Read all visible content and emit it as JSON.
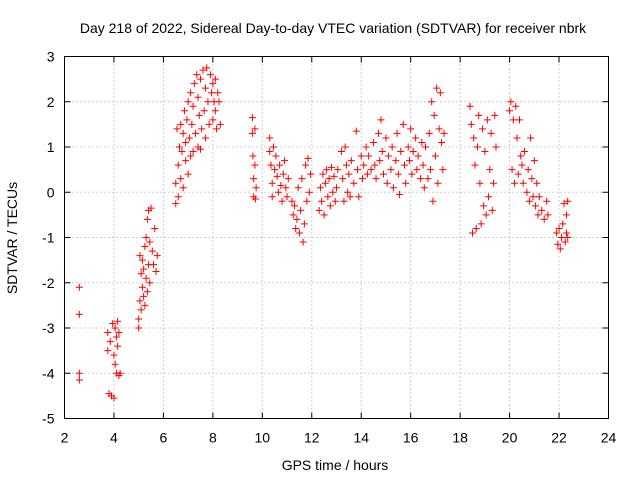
{
  "chart_data": {
    "type": "scatter",
    "title": "Day 218 of 2022, Sidereal Day-to-day VTEC variation (SDTVAR) for receiver nbrk",
    "xlabel": "GPS time / hours",
    "ylabel": "SDTVAR / TECUs",
    "xlim": [
      2,
      24
    ],
    "ylim": [
      -5,
      3
    ],
    "xticks": [
      2,
      4,
      6,
      8,
      10,
      12,
      14,
      16,
      18,
      20,
      22,
      24
    ],
    "yticks": [
      -5,
      -4,
      -3,
      -2,
      -1,
      0,
      1,
      2,
      3
    ],
    "grid": true,
    "marker": "+",
    "color": "#ff0000",
    "series": [
      {
        "name": "SDTVAR",
        "points": [
          [
            2.6,
            -2.1
          ],
          [
            2.6,
            -2.7
          ],
          [
            2.6,
            -4.0
          ],
          [
            2.6,
            -4.15
          ],
          [
            3.75,
            -3.1
          ],
          [
            3.75,
            -3.5
          ],
          [
            3.8,
            -4.45
          ],
          [
            3.85,
            -3.3
          ],
          [
            3.9,
            -4.5
          ],
          [
            3.95,
            -2.9
          ],
          [
            4.0,
            -3.6
          ],
          [
            4.0,
            -4.55
          ],
          [
            4.05,
            -3.0
          ],
          [
            4.05,
            -3.8
          ],
          [
            4.1,
            -3.2
          ],
          [
            4.1,
            -4.0
          ],
          [
            4.15,
            -2.85
          ],
          [
            4.15,
            -3.4
          ],
          [
            4.2,
            -4.05
          ],
          [
            4.2,
            -3.1
          ],
          [
            4.25,
            -4.0
          ],
          [
            5.0,
            -3.0
          ],
          [
            5.0,
            -2.8
          ],
          [
            5.05,
            -2.4
          ],
          [
            5.05,
            -1.4
          ],
          [
            5.1,
            -2.6
          ],
          [
            5.1,
            -1.8
          ],
          [
            5.15,
            -2.1
          ],
          [
            5.15,
            -1.5
          ],
          [
            5.2,
            -2.3
          ],
          [
            5.2,
            -1.7
          ],
          [
            5.25,
            -2.5
          ],
          [
            5.25,
            -1.2
          ],
          [
            5.3,
            -1.9
          ],
          [
            5.3,
            -1.0
          ],
          [
            5.35,
            -2.2
          ],
          [
            5.35,
            -0.6
          ],
          [
            5.4,
            -1.6
          ],
          [
            5.4,
            -0.4
          ],
          [
            5.45,
            -2.0
          ],
          [
            5.45,
            -1.1
          ],
          [
            5.5,
            -0.35
          ],
          [
            5.55,
            -1.3
          ],
          [
            5.6,
            -1.6
          ],
          [
            5.65,
            -0.8
          ],
          [
            5.7,
            -1.75
          ],
          [
            5.75,
            -1.4
          ],
          [
            6.5,
            -0.25
          ],
          [
            6.5,
            0.2
          ],
          [
            6.55,
            1.4
          ],
          [
            6.6,
            -0.1
          ],
          [
            6.6,
            0.6
          ],
          [
            6.65,
            1.0
          ],
          [
            6.7,
            0.3
          ],
          [
            6.7,
            1.5
          ],
          [
            6.75,
            0.9
          ],
          [
            6.8,
            0.1
          ],
          [
            6.8,
            1.3
          ],
          [
            6.85,
            1.8
          ],
          [
            6.9,
            0.7
          ],
          [
            6.9,
            1.1
          ],
          [
            6.95,
            1.6
          ],
          [
            7.0,
            0.4
          ],
          [
            7.0,
            2.0
          ],
          [
            7.05,
            1.2
          ],
          [
            7.1,
            0.8
          ],
          [
            7.1,
            2.2
          ],
          [
            7.15,
            1.5
          ],
          [
            7.2,
            1.9
          ],
          [
            7.2,
            0.9
          ],
          [
            7.25,
            2.4
          ],
          [
            7.3,
            1.3
          ],
          [
            7.35,
            2.6
          ],
          [
            7.4,
            1.0
          ],
          [
            7.4,
            2.1
          ],
          [
            7.45,
            1.7
          ],
          [
            7.5,
            2.5
          ],
          [
            7.5,
            0.95
          ],
          [
            7.55,
            1.4
          ],
          [
            7.6,
            2.7
          ],
          [
            7.65,
            1.8
          ],
          [
            7.7,
            2.3
          ],
          [
            7.7,
            1.2
          ],
          [
            7.75,
            2.75
          ],
          [
            7.8,
            2.0
          ],
          [
            7.85,
            1.5
          ],
          [
            7.9,
            2.6
          ],
          [
            7.95,
            2.2
          ],
          [
            8.0,
            1.6
          ],
          [
            8.0,
            2.4
          ],
          [
            8.05,
            2.0
          ],
          [
            8.1,
            1.8
          ],
          [
            8.1,
            2.5
          ],
          [
            8.15,
            1.4
          ],
          [
            8.2,
            2.2
          ],
          [
            8.25,
            2.0
          ],
          [
            8.3,
            1.5
          ],
          [
            9.6,
            1.65
          ],
          [
            9.6,
            1.3
          ],
          [
            9.62,
            0.8
          ],
          [
            9.65,
            0.3
          ],
          [
            9.65,
            -0.1
          ],
          [
            9.7,
            0.6
          ],
          [
            9.7,
            1.4
          ],
          [
            9.72,
            -0.15
          ],
          [
            9.75,
            0.1
          ],
          [
            10.3,
            1.2
          ],
          [
            10.3,
            0.9
          ],
          [
            10.35,
            0.6
          ],
          [
            10.4,
            0.2
          ],
          [
            10.4,
            -0.1
          ],
          [
            10.45,
            1.0
          ],
          [
            10.5,
            0.5
          ],
          [
            10.55,
            0.8
          ],
          [
            10.6,
            0.35
          ],
          [
            10.65,
            0.0
          ],
          [
            10.7,
            0.6
          ],
          [
            10.75,
            0.15
          ],
          [
            10.8,
            -0.2
          ],
          [
            10.85,
            0.4
          ],
          [
            10.9,
            0.7
          ],
          [
            10.95,
            0.1
          ],
          [
            11.0,
            -0.1
          ],
          [
            11.05,
            0.3
          ],
          [
            11.2,
            -0.2
          ],
          [
            11.25,
            -0.5
          ],
          [
            11.3,
            -0.3
          ],
          [
            11.35,
            -0.8
          ],
          [
            11.4,
            -0.6
          ],
          [
            11.45,
            0.1
          ],
          [
            11.5,
            -0.9
          ],
          [
            11.55,
            -0.4
          ],
          [
            11.6,
            0.3
          ],
          [
            11.65,
            -1.1
          ],
          [
            11.7,
            -0.7
          ],
          [
            11.75,
            0.6
          ],
          [
            11.8,
            -0.2
          ],
          [
            11.85,
            0.75
          ],
          [
            11.9,
            0.0
          ],
          [
            11.95,
            0.4
          ],
          [
            12.3,
            -0.4
          ],
          [
            12.35,
            0.1
          ],
          [
            12.4,
            -0.2
          ],
          [
            12.45,
            0.4
          ],
          [
            12.5,
            -0.5
          ],
          [
            12.55,
            0.2
          ],
          [
            12.6,
            0.5
          ],
          [
            12.65,
            -0.1
          ],
          [
            12.7,
            0.3
          ],
          [
            12.75,
            -0.3
          ],
          [
            12.8,
            0.55
          ],
          [
            12.85,
            0.0
          ],
          [
            12.9,
            0.35
          ],
          [
            12.95,
            -0.2
          ],
          [
            13.0,
            0.1
          ],
          [
            13.05,
            0.5
          ],
          [
            13.2,
            0.9
          ],
          [
            13.25,
            0.3
          ],
          [
            13.3,
            -0.2
          ],
          [
            13.35,
            1.0
          ],
          [
            13.4,
            0.6
          ],
          [
            13.45,
            0.0
          ],
          [
            13.5,
            0.4
          ],
          [
            13.55,
            -0.1
          ],
          [
            13.6,
            0.7
          ],
          [
            13.7,
            0.2
          ],
          [
            13.8,
            1.35
          ],
          [
            13.85,
            0.5
          ],
          [
            13.9,
            -0.1
          ],
          [
            14.0,
            0.8
          ],
          [
            14.05,
            0.3
          ],
          [
            14.1,
            0.6
          ],
          [
            14.2,
            1.0
          ],
          [
            14.25,
            0.4
          ],
          [
            14.3,
            0.8
          ],
          [
            14.4,
            0.5
          ],
          [
            14.5,
            1.1
          ],
          [
            14.55,
            0.6
          ],
          [
            14.6,
            0.3
          ],
          [
            14.7,
            1.3
          ],
          [
            14.75,
            0.7
          ],
          [
            14.8,
            1.6
          ],
          [
            14.85,
            0.9
          ],
          [
            14.9,
            0.4
          ],
          [
            15.0,
            1.2
          ],
          [
            15.05,
            0.2
          ],
          [
            15.1,
            0.8
          ],
          [
            15.2,
            0.5
          ],
          [
            15.25,
            1.0
          ],
          [
            15.3,
            0.1
          ],
          [
            15.4,
            0.7
          ],
          [
            15.45,
            1.3
          ],
          [
            15.5,
            0.4
          ],
          [
            15.55,
            -0.05
          ],
          [
            15.6,
            0.9
          ],
          [
            15.7,
            1.5
          ],
          [
            15.75,
            0.6
          ],
          [
            15.8,
            0.2
          ],
          [
            15.9,
            1.0
          ],
          [
            15.95,
            0.7
          ],
          [
            16.0,
            1.4
          ],
          [
            16.05,
            0.4
          ],
          [
            16.1,
            0.9
          ],
          [
            16.2,
            1.2
          ],
          [
            16.25,
            0.5
          ],
          [
            16.3,
            0.8
          ],
          [
            16.4,
            0.3
          ],
          [
            16.45,
            1.1
          ],
          [
            16.5,
            0.6
          ],
          [
            16.55,
            0.1
          ],
          [
            16.6,
            1.0
          ],
          [
            16.7,
            0.3
          ],
          [
            16.75,
            1.3
          ],
          [
            16.8,
            0.5
          ],
          [
            16.85,
            2.0
          ],
          [
            16.9,
            -0.2
          ],
          [
            16.95,
            1.7
          ],
          [
            17.0,
            0.8
          ],
          [
            17.05,
            2.3
          ],
          [
            17.1,
            0.2
          ],
          [
            17.15,
            1.4
          ],
          [
            17.2,
            2.2
          ],
          [
            17.25,
            1.1
          ],
          [
            17.3,
            0.5
          ],
          [
            17.35,
            1.3
          ],
          [
            18.4,
            1.9
          ],
          [
            18.45,
            1.5
          ],
          [
            18.5,
            -0.9
          ],
          [
            18.55,
            1.2
          ],
          [
            18.6,
            0.6
          ],
          [
            18.65,
            -0.8
          ],
          [
            18.7,
            1.0
          ],
          [
            18.75,
            1.7
          ],
          [
            18.8,
            0.2
          ],
          [
            18.85,
            -0.7
          ],
          [
            18.9,
            1.4
          ],
          [
            18.95,
            -0.3
          ],
          [
            19.0,
            0.9
          ],
          [
            19.05,
            -0.5
          ],
          [
            19.1,
            1.6
          ],
          [
            19.15,
            -0.1
          ],
          [
            19.2,
            0.5
          ],
          [
            19.25,
            1.3
          ],
          [
            19.3,
            -0.4
          ],
          [
            19.35,
            0.2
          ],
          [
            19.4,
            1.7
          ],
          [
            19.45,
            1.0
          ],
          [
            20.0,
            1.8
          ],
          [
            20.05,
            2.0
          ],
          [
            20.1,
            0.5
          ],
          [
            20.15,
            1.6
          ],
          [
            20.2,
            0.2
          ],
          [
            20.25,
            1.9
          ],
          [
            20.3,
            1.2
          ],
          [
            20.35,
            0.4
          ],
          [
            20.4,
            1.6
          ],
          [
            20.45,
            0.8
          ],
          [
            20.5,
            0.6
          ],
          [
            20.55,
            0.2
          ],
          [
            20.6,
            0.9
          ],
          [
            20.7,
            0.0
          ],
          [
            20.75,
            0.5
          ],
          [
            20.8,
            -0.2
          ],
          [
            20.85,
            1.2
          ],
          [
            20.9,
            0.3
          ],
          [
            20.95,
            -0.1
          ],
          [
            21.0,
            0.7
          ],
          [
            21.05,
            -0.3
          ],
          [
            21.1,
            0.2
          ],
          [
            21.15,
            -0.5
          ],
          [
            21.2,
            -0.1
          ],
          [
            21.3,
            -0.4
          ],
          [
            21.4,
            -0.6
          ],
          [
            21.5,
            -0.2
          ],
          [
            21.55,
            -0.5
          ],
          [
            21.9,
            -0.9
          ],
          [
            21.95,
            -1.15
          ],
          [
            22.0,
            -0.8
          ],
          [
            22.05,
            -1.25
          ],
          [
            22.1,
            -1.0
          ],
          [
            22.15,
            -0.7
          ],
          [
            22.2,
            -0.25
          ],
          [
            22.25,
            -1.1
          ],
          [
            22.3,
            -0.5
          ],
          [
            22.3,
            -0.9
          ],
          [
            22.35,
            -1.0
          ],
          [
            22.35,
            -0.2
          ]
        ]
      }
    ]
  }
}
